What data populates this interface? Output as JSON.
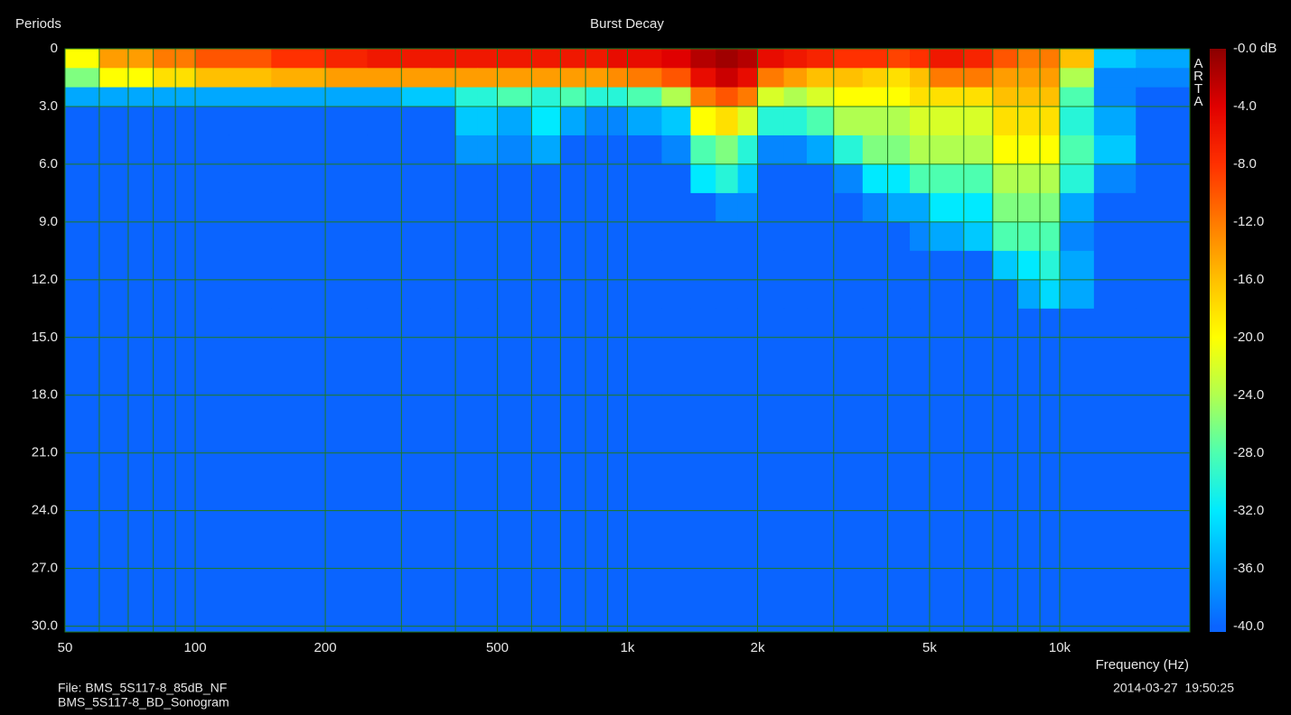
{
  "chart_data": {
    "type": "heatmap",
    "title": "Burst Decay",
    "ylabel": "Periods",
    "xlabel": "Frequency (Hz)",
    "watermark": "ARTA",
    "footer": {
      "file": "File: BMS_5S117-8_85dB_NF",
      "name": "BMS_5S117-8_BD_Sonogram",
      "timestamp": "2014-03-27  19:50:25"
    },
    "xscale": "log",
    "xlim": [
      50,
      20000
    ],
    "xticks": [
      50,
      100,
      200,
      500,
      {
        "value": 1000,
        "label": "1k"
      },
      {
        "value": 2000,
        "label": "2k"
      },
      {
        "value": 5000,
        "label": "5k"
      },
      {
        "value": 10000,
        "label": "10k"
      }
    ],
    "x_minor_ticks": [
      60,
      70,
      80,
      90,
      300,
      400,
      600,
      700,
      800,
      900,
      3000,
      4000,
      6000,
      7000,
      8000,
      9000
    ],
    "ylim": [
      0,
      30.3
    ],
    "y_inverted": true,
    "yticks": [
      0,
      {
        "value": 3,
        "label": "3.0"
      },
      {
        "value": 6,
        "label": "6.0"
      },
      {
        "value": 9,
        "label": "9.0"
      },
      {
        "value": 12,
        "label": "12.0"
      },
      {
        "value": 15,
        "label": "15.0"
      },
      {
        "value": 18,
        "label": "18.0"
      },
      {
        "value": 21,
        "label": "21.0"
      },
      {
        "value": 24,
        "label": "24.0"
      },
      {
        "value": 27,
        "label": "27.0"
      },
      {
        "value": 30,
        "label": "30.0"
      }
    ],
    "grid": true,
    "grid_color": "#1f7a1f",
    "zlim": [
      -40,
      0
    ],
    "zticks": [
      {
        "value": 0,
        "label": "-0.0 dB"
      },
      {
        "value": -4,
        "label": "-4.0"
      },
      {
        "value": -8,
        "label": "-8.0"
      },
      {
        "value": -12,
        "label": "-12.0"
      },
      {
        "value": -16,
        "label": "-16.0"
      },
      {
        "value": -20,
        "label": "-20.0"
      },
      {
        "value": -24,
        "label": "-24.0"
      },
      {
        "value": -28,
        "label": "-28.0"
      },
      {
        "value": -32,
        "label": "-32.0"
      },
      {
        "value": -36,
        "label": "-36.0"
      },
      {
        "value": -40,
        "label": "-40.0"
      }
    ],
    "colorscale": [
      "#0a64ff",
      "#00a8ff",
      "#00eaff",
      "#4dffb0",
      "#b0ff50",
      "#ffff00",
      "#ffc000",
      "#ff7a00",
      "#ff3000",
      "#e00000",
      "#8a0000"
    ],
    "x_edges": [
      50,
      60,
      70,
      80,
      90,
      100,
      120,
      150,
      200,
      250,
      300,
      350,
      400,
      450,
      500,
      600,
      700,
      800,
      900,
      1000,
      1200,
      1400,
      1600,
      1800,
      2000,
      2300,
      2600,
      3000,
      3500,
      4000,
      4500,
      5000,
      6000,
      7000,
      8000,
      9000,
      10000,
      12000,
      15000,
      20000
    ],
    "y_edges": [
      0,
      1,
      2,
      3,
      4.5,
      6,
      7.5,
      9,
      10.5,
      12,
      13.5,
      30.3
    ],
    "z": [
      [
        -20,
        -14,
        -14,
        -12,
        -12,
        -10,
        -10,
        -8,
        -7,
        -6,
        -6,
        -6,
        -6,
        -6,
        -6,
        -6,
        -6,
        -6,
        -5,
        -5,
        -4,
        -2,
        -1,
        -2,
        -5,
        -6,
        -7,
        -8,
        -8,
        -9,
        -8,
        -6,
        -7,
        -10,
        -12,
        -12,
        -16,
        -34,
        -36
      ],
      [
        -26,
        -20,
        -20,
        -18,
        -18,
        -16,
        -16,
        -15,
        -14,
        -14,
        -14,
        -14,
        -14,
        -14,
        -14,
        -14,
        -14,
        -14,
        -13,
        -12,
        -10,
        -5,
        -3,
        -5,
        -12,
        -14,
        -16,
        -16,
        -17,
        -18,
        -16,
        -12,
        -12,
        -14,
        -14,
        -14,
        -24,
        -38,
        -38
      ],
      [
        -36,
        -36,
        -36,
        -36,
        -36,
        -36,
        -36,
        -36,
        -36,
        -36,
        -34,
        -34,
        -30,
        -30,
        -28,
        -30,
        -28,
        -30,
        -30,
        -28,
        -24,
        -12,
        -10,
        -12,
        -22,
        -24,
        -22,
        -20,
        -20,
        -20,
        -18,
        -18,
        -18,
        -16,
        -16,
        -16,
        -28,
        -38,
        -40
      ],
      [
        -40,
        -40,
        -40,
        -40,
        -40,
        -40,
        -40,
        -40,
        -40,
        -40,
        -40,
        -40,
        -34,
        -34,
        -36,
        -32,
        -36,
        -38,
        -38,
        -36,
        -34,
        -20,
        -18,
        -22,
        -30,
        -30,
        -28,
        -24,
        -24,
        -24,
        -22,
        -22,
        -22,
        -18,
        -18,
        -18,
        -30,
        -36,
        -40
      ],
      [
        -40,
        -40,
        -40,
        -40,
        -40,
        -40,
        -40,
        -40,
        -40,
        -40,
        -40,
        -40,
        -37,
        -37,
        -38,
        -36,
        -40,
        -40,
        -40,
        -40,
        -38,
        -28,
        -26,
        -30,
        -38,
        -38,
        -36,
        -30,
        -26,
        -26,
        -24,
        -24,
        -24,
        -20,
        -20,
        -20,
        -28,
        -34,
        -40
      ],
      [
        -40,
        -40,
        -40,
        -40,
        -40,
        -40,
        -40,
        -40,
        -40,
        -40,
        -40,
        -40,
        -40,
        -40,
        -40,
        -40,
        -40,
        -40,
        -40,
        -40,
        -40,
        -32,
        -30,
        -34,
        -40,
        -40,
        -40,
        -38,
        -32,
        -32,
        -28,
        -28,
        -28,
        -24,
        -24,
        -24,
        -30,
        -38,
        -40
      ],
      [
        -40,
        -40,
        -40,
        -40,
        -40,
        -40,
        -40,
        -40,
        -40,
        -40,
        -40,
        -40,
        -40,
        -40,
        -40,
        -40,
        -40,
        -40,
        -40,
        -40,
        -40,
        -40,
        -38,
        -38,
        -40,
        -40,
        -40,
        -40,
        -38,
        -36,
        -36,
        -32,
        -32,
        -26,
        -26,
        -26,
        -36,
        -40,
        -40
      ],
      [
        -40,
        -40,
        -40,
        -40,
        -40,
        -40,
        -40,
        -40,
        -40,
        -40,
        -40,
        -40,
        -40,
        -40,
        -40,
        -40,
        -40,
        -40,
        -40,
        -40,
        -40,
        -40,
        -40,
        -40,
        -40,
        -40,
        -40,
        -40,
        -40,
        -40,
        -38,
        -36,
        -34,
        -28,
        -28,
        -28,
        -38,
        -40,
        -40
      ],
      [
        -40,
        -40,
        -40,
        -40,
        -40,
        -40,
        -40,
        -40,
        -40,
        -40,
        -40,
        -40,
        -40,
        -40,
        -40,
        -40,
        -40,
        -40,
        -40,
        -40,
        -40,
        -40,
        -40,
        -40,
        -40,
        -40,
        -40,
        -40,
        -40,
        -40,
        -40,
        -40,
        -40,
        -34,
        -32,
        -30,
        -36,
        -40,
        -40
      ],
      [
        -40,
        -40,
        -40,
        -40,
        -40,
        -40,
        -40,
        -40,
        -40,
        -40,
        -40,
        -40,
        -40,
        -40,
        -40,
        -40,
        -40,
        -40,
        -40,
        -40,
        -40,
        -40,
        -40,
        -40,
        -40,
        -40,
        -40,
        -40,
        -40,
        -40,
        -40,
        -40,
        -40,
        -40,
        -36,
        -33,
        -36,
        -40,
        -40
      ],
      [
        -40,
        -40,
        -40,
        -40,
        -40,
        -40,
        -40,
        -40,
        -40,
        -40,
        -40,
        -40,
        -40,
        -40,
        -40,
        -40,
        -40,
        -40,
        -40,
        -40,
        -40,
        -40,
        -40,
        -40,
        -40,
        -40,
        -40,
        -40,
        -40,
        -40,
        -40,
        -40,
        -40,
        -40,
        -40,
        -40,
        -40,
        -40,
        -40
      ]
    ]
  }
}
